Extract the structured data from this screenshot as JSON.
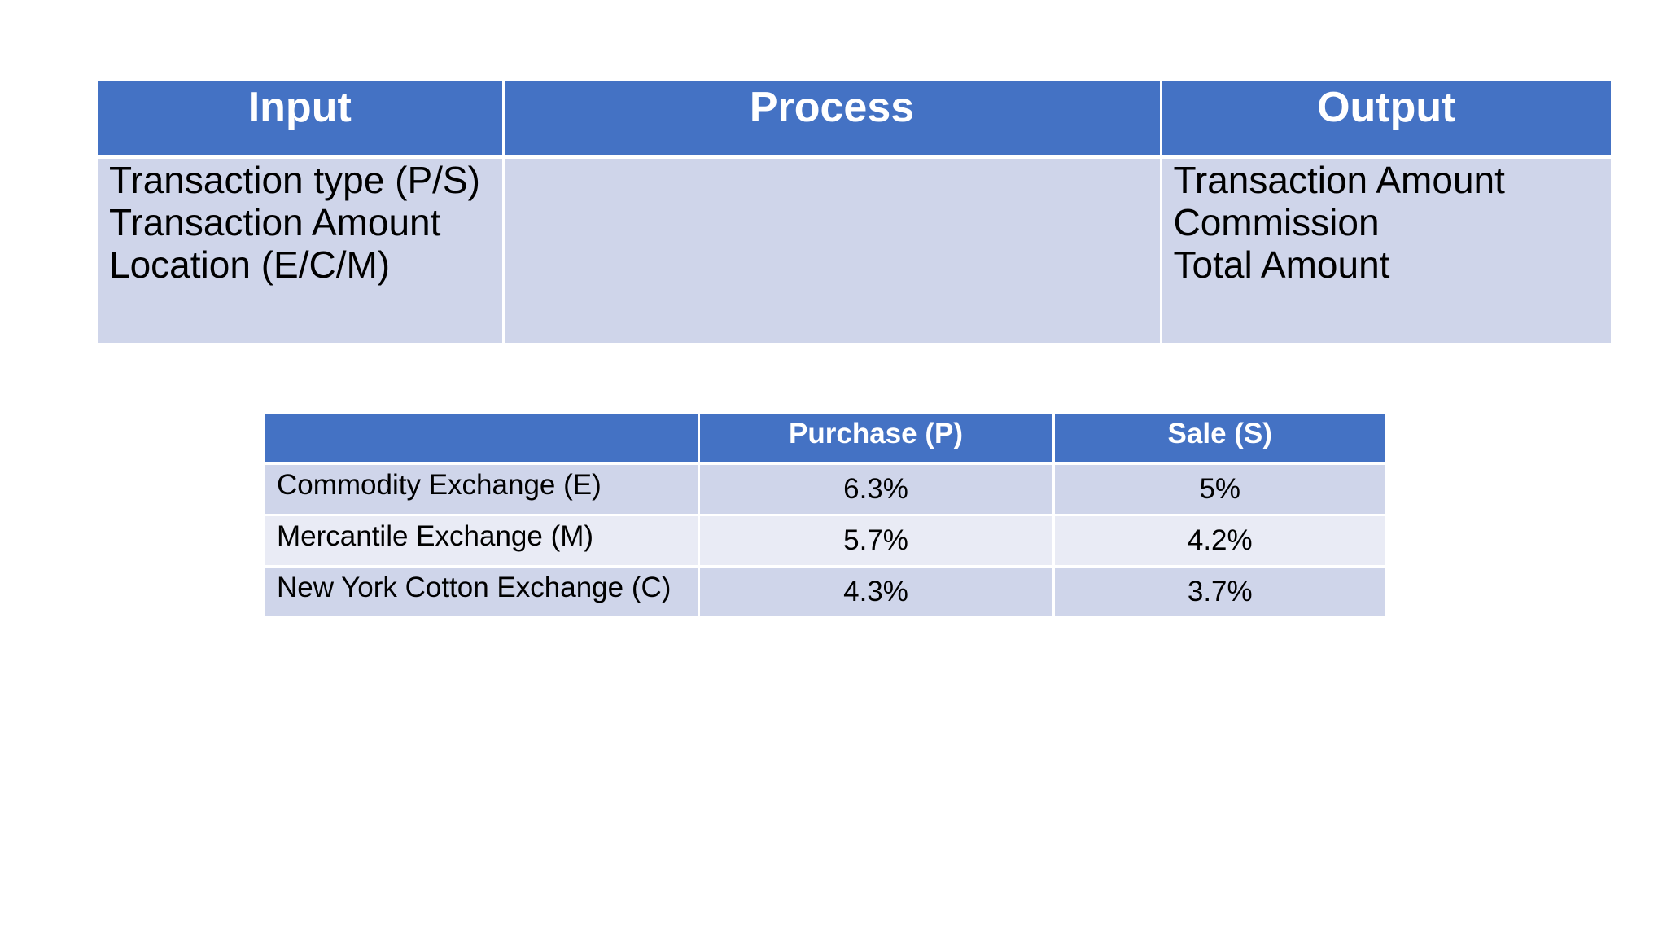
{
  "ipo_table": {
    "headers": [
      "Input",
      "Process",
      "Output"
    ],
    "input_lines": [
      "Transaction type (P/S)",
      "Transaction Amount",
      "Location (E/C/M)"
    ],
    "process_lines": [],
    "output_lines": [
      "Transaction Amount",
      "Commission",
      "Total Amount"
    ]
  },
  "rate_table": {
    "headers": [
      "",
      "Purchase (P)",
      "Sale (S)"
    ],
    "rows": [
      {
        "location": "Commodity Exchange (E)",
        "purchase": "6.3%",
        "sale": "5%"
      },
      {
        "location": "Mercantile Exchange (M)",
        "purchase": "5.7%",
        "sale": "4.2%"
      },
      {
        "location": "New York Cotton Exchange (C)",
        "purchase": "4.3%",
        "sale": "3.7%"
      }
    ]
  },
  "colors": {
    "header_blue": "#4472c4",
    "row_dark": "#cfd5ea",
    "row_light": "#e9ebf5"
  }
}
